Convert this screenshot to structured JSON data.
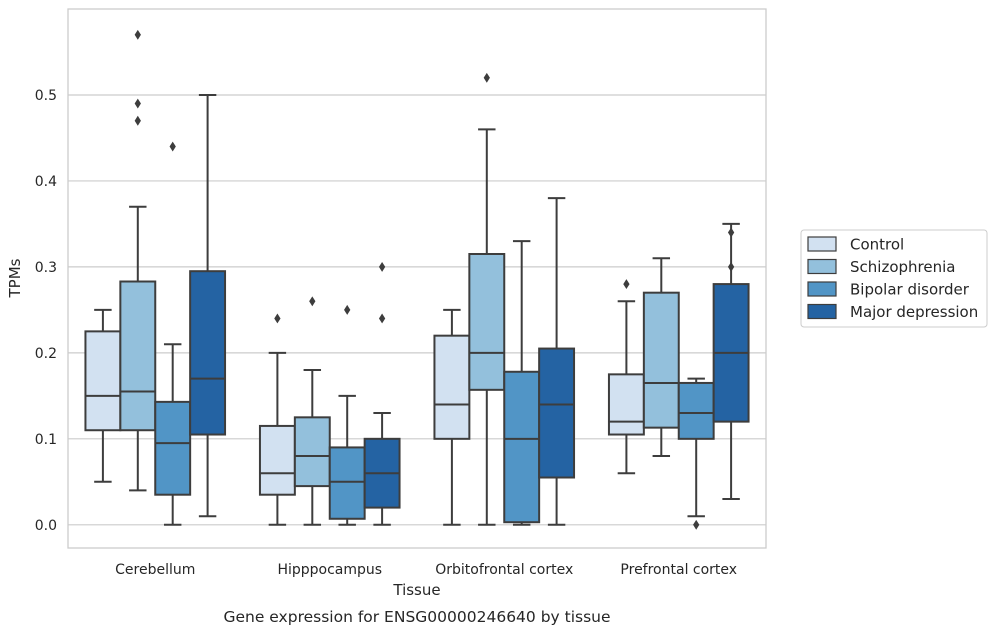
{
  "chart_data": {
    "type": "boxplot",
    "title": "",
    "caption": "Gene expression for ENSG00000246640 by tissue",
    "xlabel": "Tissue",
    "ylabel": "TPMs",
    "ylim": [
      -0.027,
      0.6
    ],
    "yticks": [
      0.0,
      0.1,
      0.2,
      0.3,
      0.4,
      0.5
    ],
    "ytick_labels": [
      "0.0",
      "0.1",
      "0.2",
      "0.3",
      "0.4",
      "0.5"
    ],
    "grid": "horizontal",
    "legend_position": "outside-right",
    "categories": [
      "Cerebellum",
      "Hipppocampus",
      "Orbitofrontal cortex",
      "Prefrontal cortex"
    ],
    "series": [
      {
        "name": "Control",
        "color": "#d2e1f1",
        "boxes": [
          {
            "whislo": 0.05,
            "q1": 0.11,
            "med": 0.15,
            "q3": 0.225,
            "whishi": 0.25,
            "fliers": []
          },
          {
            "whislo": 0.0,
            "q1": 0.035,
            "med": 0.06,
            "q3": 0.115,
            "whishi": 0.2,
            "fliers": [
              0.24
            ]
          },
          {
            "whislo": 0.0,
            "q1": 0.1,
            "med": 0.14,
            "q3": 0.22,
            "whishi": 0.25,
            "fliers": []
          },
          {
            "whislo": 0.06,
            "q1": 0.105,
            "med": 0.12,
            "q3": 0.175,
            "whishi": 0.26,
            "fliers": [
              0.28
            ]
          }
        ]
      },
      {
        "name": "Schizophrenia",
        "color": "#93c0dc",
        "boxes": [
          {
            "whislo": 0.04,
            "q1": 0.11,
            "med": 0.155,
            "q3": 0.283,
            "whishi": 0.37,
            "fliers": [
              0.47,
              0.49,
              0.57
            ]
          },
          {
            "whislo": 0.0,
            "q1": 0.045,
            "med": 0.08,
            "q3": 0.125,
            "whishi": 0.18,
            "fliers": [
              0.26
            ]
          },
          {
            "whislo": 0.0,
            "q1": 0.157,
            "med": 0.2,
            "q3": 0.315,
            "whishi": 0.46,
            "fliers": [
              0.52
            ]
          },
          {
            "whislo": 0.08,
            "q1": 0.113,
            "med": 0.165,
            "q3": 0.27,
            "whishi": 0.31,
            "fliers": []
          }
        ]
      },
      {
        "name": "Bipolar disorder",
        "color": "#5195c6",
        "boxes": [
          {
            "whislo": 0.0,
            "q1": 0.035,
            "med": 0.095,
            "q3": 0.143,
            "whishi": 0.21,
            "fliers": [
              0.44
            ]
          },
          {
            "whislo": 0.0,
            "q1": 0.007,
            "med": 0.05,
            "q3": 0.09,
            "whishi": 0.15,
            "fliers": [
              0.25
            ]
          },
          {
            "whislo": 0.0,
            "q1": 0.003,
            "med": 0.1,
            "q3": 0.178,
            "whishi": 0.33,
            "fliers": []
          },
          {
            "whislo": 0.01,
            "q1": 0.1,
            "med": 0.13,
            "q3": 0.165,
            "whishi": 0.17,
            "fliers": [
              0.0
            ]
          }
        ]
      },
      {
        "name": "Major depression",
        "color": "#2463a3",
        "boxes": [
          {
            "whislo": 0.01,
            "q1": 0.105,
            "med": 0.17,
            "q3": 0.295,
            "whishi": 0.5,
            "fliers": []
          },
          {
            "whislo": 0.0,
            "q1": 0.02,
            "med": 0.06,
            "q3": 0.1,
            "whishi": 0.13,
            "fliers": [
              0.24,
              0.3
            ]
          },
          {
            "whislo": 0.0,
            "q1": 0.055,
            "med": 0.14,
            "q3": 0.205,
            "whishi": 0.38,
            "fliers": []
          },
          {
            "whislo": 0.03,
            "q1": 0.12,
            "med": 0.2,
            "q3": 0.28,
            "whishi": 0.35,
            "fliers": [
              0.3,
              0.34
            ]
          }
        ]
      }
    ]
  }
}
